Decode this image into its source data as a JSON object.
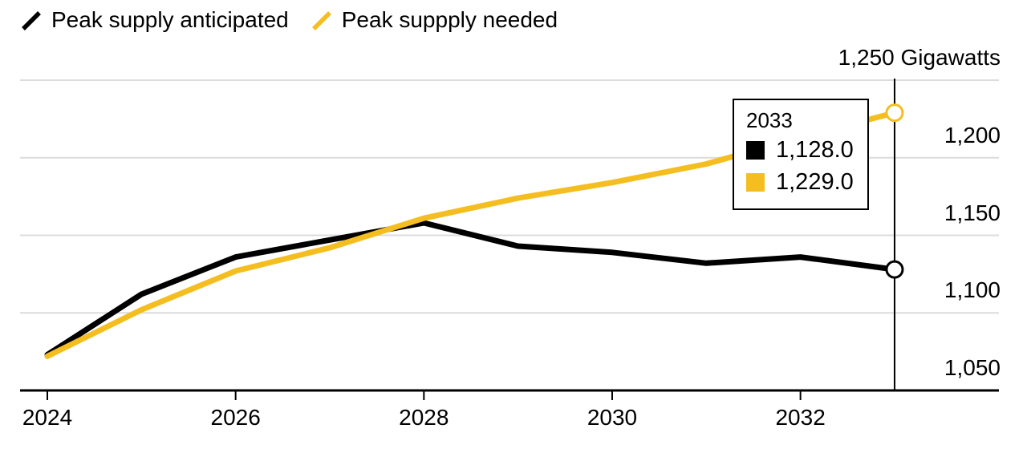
{
  "chart_data": {
    "type": "line",
    "title": "",
    "unit_label": "1,250 Gigawatts",
    "x": [
      2024,
      2025,
      2026,
      2027,
      2028,
      2029,
      2030,
      2031,
      2032,
      2033
    ],
    "series": [
      {
        "name": "Peak supply anticipated",
        "color": "#000000",
        "values": [
          1073,
          1112,
          1136,
          1147,
          1158,
          1143,
          1139,
          1132,
          1136,
          1128
        ]
      },
      {
        "name": "Peak suppply needed",
        "color": "#F5BE20",
        "values": [
          1072,
          1102,
          1127,
          1142,
          1161,
          1174,
          1184,
          1196,
          1213,
          1229
        ]
      }
    ],
    "ylim": [
      1050,
      1250
    ],
    "y_ticks": [
      {
        "value": 1050,
        "label": "1,050"
      },
      {
        "value": 1100,
        "label": "1,100"
      },
      {
        "value": 1150,
        "label": "1,150"
      },
      {
        "value": 1200,
        "label": "1,200"
      },
      {
        "value": 1250,
        "label": "1,250 Gigawatts"
      }
    ],
    "x_ticks": [
      {
        "value": 2024,
        "label": "2024"
      },
      {
        "value": 2026,
        "label": "2026"
      },
      {
        "value": 2028,
        "label": "2028"
      },
      {
        "value": 2030,
        "label": "2030"
      },
      {
        "value": 2032,
        "label": "2032"
      }
    ],
    "grid": "horizontal",
    "legend_position": "top-left",
    "highlight_year": 2033
  },
  "legend": {
    "items": [
      {
        "label": "Peak supply anticipated",
        "color": "#000000"
      },
      {
        "label": "Peak suppply needed",
        "color": "#F5BE20"
      }
    ]
  },
  "tooltip": {
    "title": "2033",
    "rows": [
      {
        "series": "Peak supply anticipated",
        "swatch_color": "#000000",
        "value": "1,128.0"
      },
      {
        "series": "Peak suppply needed",
        "swatch_color": "#F5BE20",
        "value": "1,229.0"
      }
    ]
  },
  "colors": {
    "line_black": "#000000",
    "line_yellow": "#F5BE20",
    "gridline": "#dcdcdc",
    "axis": "#000000",
    "text": "#000000",
    "marker_fill": "#ffffff"
  }
}
